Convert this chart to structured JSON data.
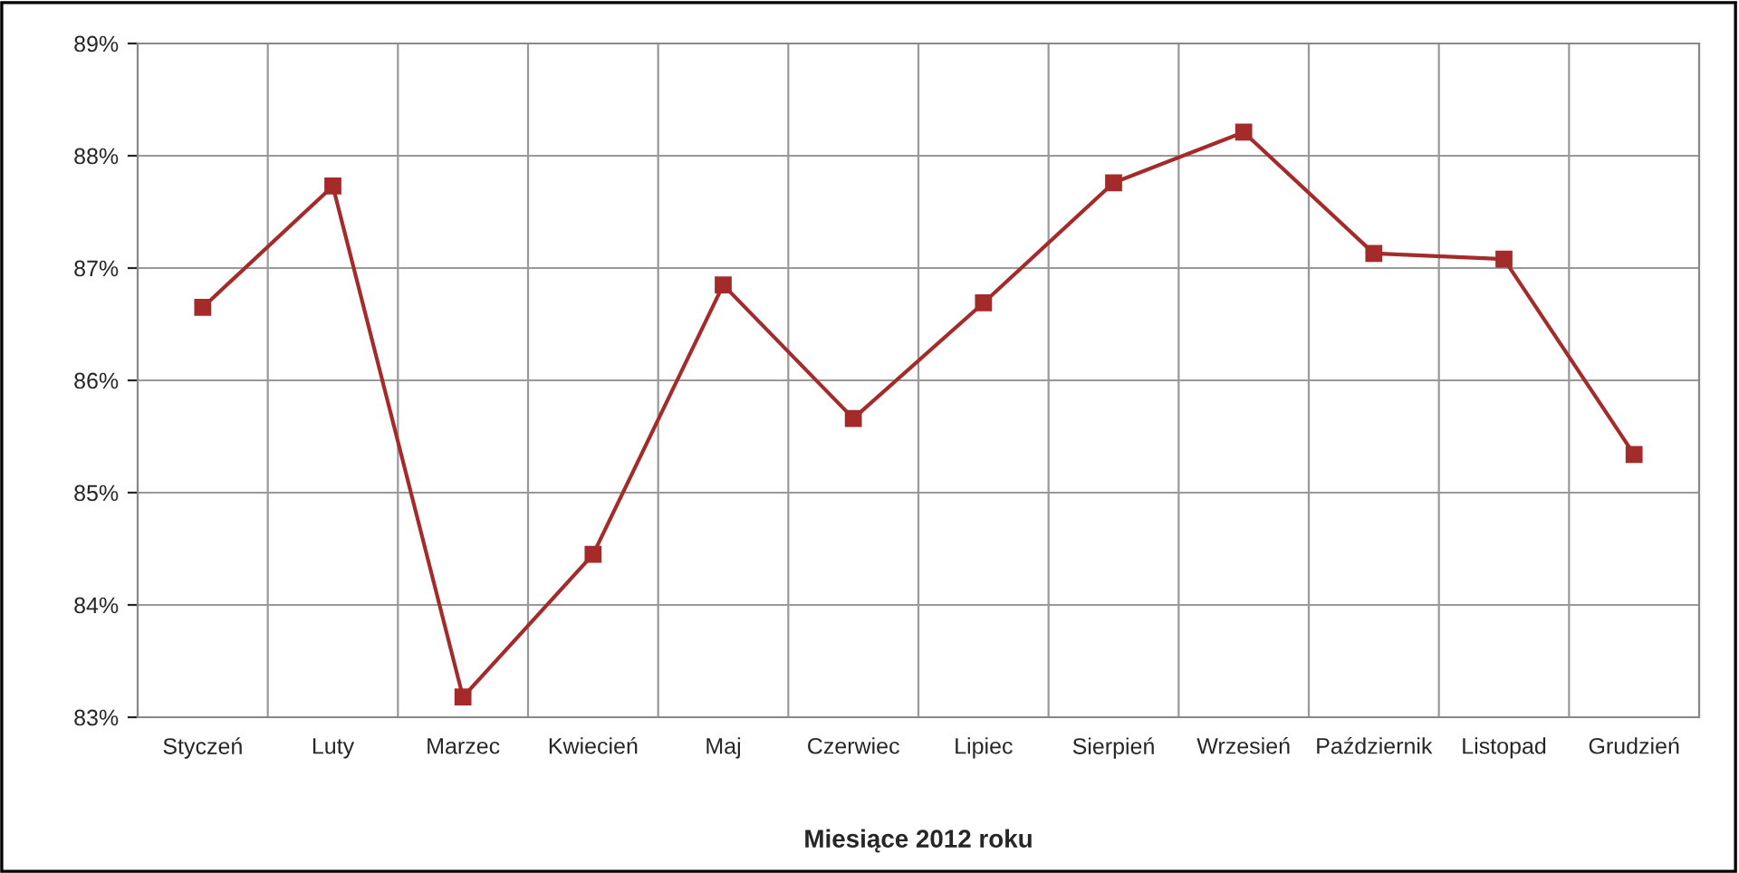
{
  "chart_data": {
    "type": "line",
    "xlabel": "Miesiące 2012 roku",
    "categories": [
      "Styczeń",
      "Luty",
      "Marzec",
      "Kwiecień",
      "Maj",
      "Czerwiec",
      "Lipiec",
      "Sierpień",
      "Wrzesień",
      "Październik",
      "Listopad",
      "Grudzień"
    ],
    "series": [
      {
        "color": "#a52a2a",
        "values": [
          86.65,
          87.73,
          83.18,
          84.45,
          86.85,
          85.66,
          86.69,
          87.76,
          88.21,
          87.13,
          87.08,
          85.34
        ]
      }
    ],
    "ylim": [
      83,
      89
    ],
    "yticks": [
      {
        "value": 83,
        "label": "83%"
      },
      {
        "value": 84,
        "label": "84%"
      },
      {
        "value": 85,
        "label": "85%"
      },
      {
        "value": 86,
        "label": "86%"
      },
      {
        "value": 87,
        "label": "87%"
      },
      {
        "value": 88,
        "label": "88%"
      },
      {
        "value": 89,
        "label": "89%"
      }
    ],
    "grid": true,
    "marker": "square",
    "line_style": "solid"
  }
}
